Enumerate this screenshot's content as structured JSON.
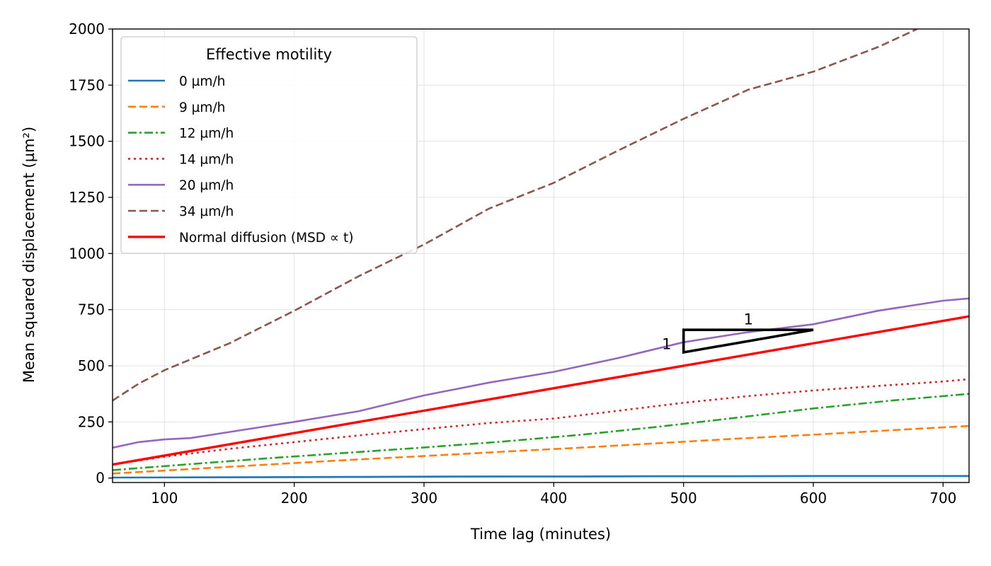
{
  "chart_data": {
    "type": "line",
    "xlabel": "Time lag (minutes)",
    "ylabel": "Mean squared displacement (µm²)",
    "xlim": [
      60,
      720
    ],
    "ylim": [
      -20,
      2000
    ],
    "xticks": [
      100,
      200,
      300,
      400,
      500,
      600,
      700
    ],
    "yticks": [
      0,
      250,
      500,
      750,
      1000,
      1250,
      1500,
      1750,
      2000
    ],
    "grid": true,
    "legend": {
      "title": "Effective motility",
      "placement": "top-left"
    },
    "series": [
      {
        "name": "0 µm/h",
        "color": "#1f77b4",
        "style": "solid",
        "x": [
          60,
          120,
          180,
          240,
          300,
          360,
          420,
          480,
          540,
          600,
          660,
          720
        ],
        "y": [
          2,
          3,
          4,
          5,
          6,
          7,
          7,
          8,
          8,
          9,
          9,
          9
        ]
      },
      {
        "name": "9 µm/h",
        "color": "#ff7f0e",
        "style": "dashed",
        "x": [
          60,
          120,
          180,
          240,
          300,
          360,
          420,
          480,
          540,
          600,
          660,
          720
        ],
        "y": [
          20,
          40,
          60,
          80,
          98,
          117,
          135,
          155,
          175,
          193,
          213,
          232
        ]
      },
      {
        "name": "12 µm/h",
        "color": "#2ca02c",
        "style": "dashdot",
        "x": [
          60,
          120,
          180,
          240,
          300,
          360,
          420,
          480,
          540,
          600,
          660,
          720
        ],
        "y": [
          35,
          62,
          88,
          112,
          136,
          162,
          192,
          228,
          268,
          310,
          345,
          375
        ]
      },
      {
        "name": "14 µm/h",
        "color": "#d62728",
        "style": "dotted",
        "x": [
          60,
          100,
          150,
          200,
          250,
          300,
          350,
          400,
          450,
          500,
          550,
          600,
          650,
          700,
          720
        ],
        "y": [
          60,
          95,
          130,
          160,
          190,
          218,
          245,
          265,
          300,
          335,
          365,
          390,
          410,
          430,
          440
        ]
      },
      {
        "name": "20 µm/h",
        "color": "#9467bd",
        "style": "solid",
        "x": [
          60,
          80,
          100,
          120,
          150,
          200,
          250,
          300,
          350,
          400,
          450,
          500,
          550,
          600,
          650,
          700,
          720
        ],
        "y": [
          135,
          160,
          172,
          178,
          205,
          250,
          298,
          368,
          425,
          473,
          535,
          605,
          650,
          685,
          745,
          790,
          800
        ]
      },
      {
        "name": "34 µm/h",
        "color": "#8c564b",
        "style": "dashed",
        "x": [
          60,
          80,
          100,
          150,
          200,
          250,
          300,
          350,
          400,
          450,
          500,
          550,
          600,
          650,
          680
        ],
        "y": [
          345,
          420,
          480,
          600,
          745,
          900,
          1040,
          1200,
          1315,
          1460,
          1600,
          1730,
          1810,
          1920,
          2000
        ]
      },
      {
        "name": "Normal diffusion (MSD ∝ t)",
        "color": "#ff0000",
        "style": "solid-thick",
        "x": [
          60,
          720
        ],
        "y": [
          60,
          720
        ]
      }
    ],
    "annotations": [
      {
        "text": "1",
        "x": 550,
        "y": 710
      },
      {
        "text": "1",
        "x": 487,
        "y": 600
      }
    ],
    "slope_triangle": {
      "x": [
        500,
        600,
        500
      ],
      "y": [
        560,
        660,
        660
      ],
      "color": "#000000"
    }
  }
}
